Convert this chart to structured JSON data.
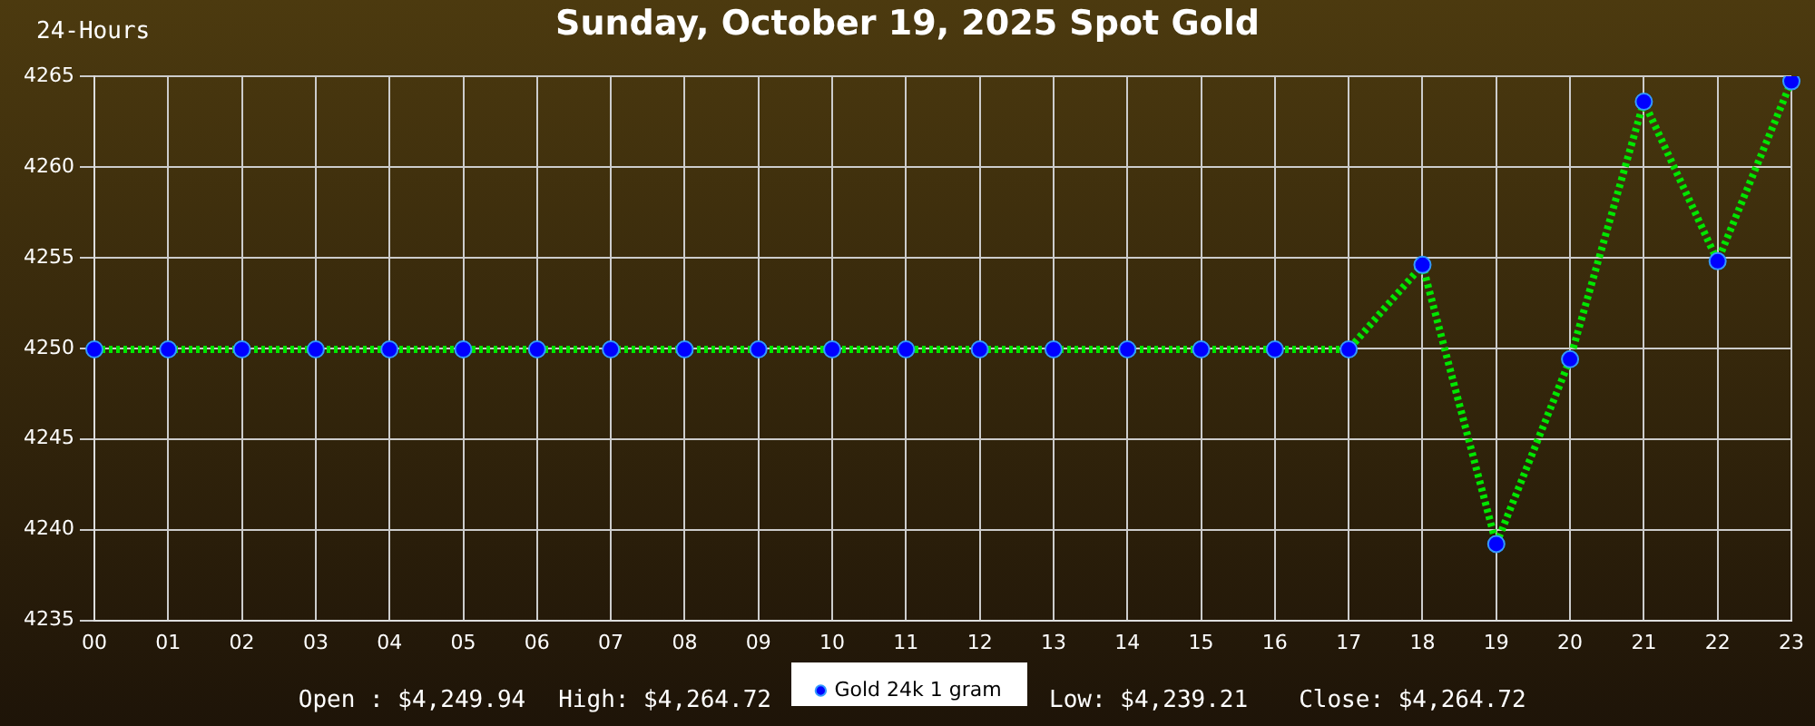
{
  "chart_data": {
    "type": "line",
    "title": "Sunday, October 19, 2025 Spot Gold",
    "subtitle": "24-Hours",
    "categories": [
      "00",
      "01",
      "02",
      "03",
      "04",
      "05",
      "06",
      "07",
      "08",
      "09",
      "10",
      "11",
      "12",
      "13",
      "14",
      "15",
      "16",
      "17",
      "18",
      "19",
      "20",
      "21",
      "22",
      "23"
    ],
    "series": [
      {
        "name": "Gold 24k 1 gram",
        "color": "#00e600",
        "colors": [
          "#0000ff",
          "#0000ff",
          "#0000ff",
          "#0000ff",
          "#0000ff",
          "#0000ff",
          "#0000ff",
          "#0000ff",
          "#0000ff",
          "#0000ff",
          "#0000ff",
          "#0000ff",
          "#0000ff",
          "#0000ff",
          "#0000ff",
          "#0000ff",
          "#0000ff",
          "#0000ff",
          "#0000ff",
          "#0000ff",
          "#0000ff",
          "#0000ff",
          "#0000ff",
          "#0000ff"
        ],
        "values": [
          4249.94,
          4249.94,
          4249.94,
          4249.94,
          4249.94,
          4249.94,
          4249.94,
          4249.94,
          4249.94,
          4249.94,
          4249.94,
          4249.94,
          4249.94,
          4249.94,
          4249.94,
          4249.94,
          4249.94,
          4249.94,
          4254.6,
          4239.21,
          4249.4,
          4263.6,
          4254.8,
          4264.72
        ]
      }
    ],
    "ylim": [
      4235,
      4265
    ],
    "yticks": [
      4235,
      4240,
      4245,
      4250,
      4255,
      4260,
      4265
    ],
    "grid": true,
    "legend": "bottom",
    "marker": "circle",
    "line_style": "dotted",
    "annotations": [
      "Open : $4,249.94",
      "High: $4,264.72",
      "Low: $4,239.21",
      "Close: $4,264.72"
    ]
  }
}
